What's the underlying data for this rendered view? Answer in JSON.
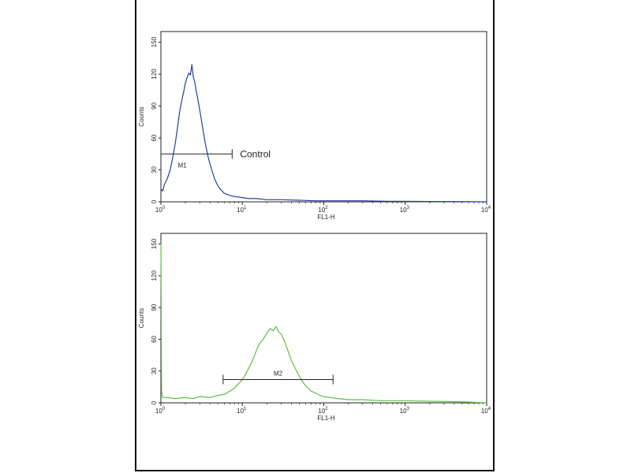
{
  "chart_data": [
    {
      "type": "line",
      "panel": "top",
      "xscale": "log",
      "xlim": [
        1,
        10000
      ],
      "ylim": [
        0,
        160
      ],
      "xlabel": "FL1-H",
      "ylabel": "Counts",
      "x_ticks": [
        1,
        10,
        100,
        1000,
        10000
      ],
      "x_tick_labels": [
        {
          "base": "10",
          "exp": "0"
        },
        {
          "base": "10",
          "exp": "1"
        },
        {
          "base": "10",
          "exp": "2"
        },
        {
          "base": "10",
          "exp": "3"
        },
        {
          "base": "10",
          "exp": "4"
        }
      ],
      "y_ticks": [
        0,
        30,
        60,
        90,
        120,
        150
      ],
      "y_tick_labels": [
        "0",
        "30",
        "60",
        "90",
        "120",
        "150"
      ],
      "color": "#2340a0",
      "series": [
        {
          "x": [
            1,
            1.05,
            1.1,
            1.2,
            1.3,
            1.4,
            1.5,
            1.6,
            1.7,
            1.8,
            1.9,
            2.0,
            2.1,
            2.2,
            2.3,
            2.4,
            2.5,
            2.6,
            2.7,
            2.8,
            3.0,
            3.2,
            3.5,
            3.8,
            4.2,
            4.6,
            5.0,
            5.5,
            6.0,
            7.0,
            8.0,
            10,
            12,
            15,
            20,
            30,
            50,
            80,
            150,
            300,
            600,
            1000,
            2000,
            5000,
            10000
          ],
          "y": [
            12,
            10,
            16,
            22,
            30,
            42,
            55,
            70,
            85,
            95,
            103,
            112,
            117,
            121,
            119,
            129,
            117,
            113,
            105,
            99,
            86,
            73,
            55,
            42,
            30,
            21,
            15,
            11,
            8,
            6,
            5,
            4,
            3,
            3,
            2,
            2,
            1.5,
            1,
            1,
            1,
            0.5,
            0.5,
            0.3,
            0.2,
            0
          ]
        }
      ],
      "marker": {
        "label": "M1",
        "x_start": 1,
        "x_end": 7.5,
        "y": 45
      },
      "annotation": "Control"
    },
    {
      "type": "line",
      "panel": "bottom",
      "xscale": "log",
      "xlim": [
        1,
        10000
      ],
      "ylim": [
        0,
        160
      ],
      "xlabel": "FL1-H",
      "ylabel": "Counts",
      "x_ticks": [
        1,
        10,
        100,
        1000,
        10000
      ],
      "x_tick_labels": [
        {
          "base": "10",
          "exp": "0"
        },
        {
          "base": "10",
          "exp": "1"
        },
        {
          "base": "10",
          "exp": "2"
        },
        {
          "base": "10",
          "exp": "3"
        },
        {
          "base": "10",
          "exp": "4"
        }
      ],
      "y_ticks": [
        0,
        30,
        60,
        90,
        120,
        150
      ],
      "y_tick_labels": [
        "0",
        "30",
        "60",
        "90",
        "120",
        "150"
      ],
      "color": "#5cc040",
      "series": [
        {
          "x": [
            1,
            1.02,
            1.05,
            1.2,
            1.5,
            2,
            2.5,
            3,
            4,
            5,
            6,
            7,
            8,
            9,
            10,
            11,
            12,
            13,
            14,
            15,
            16,
            18,
            20,
            22,
            24,
            26,
            28,
            30,
            33,
            36,
            40,
            45,
            50,
            55,
            60,
            70,
            80,
            90,
            100,
            120,
            150,
            200,
            300,
            500,
            1000,
            2000,
            5000,
            10000
          ],
          "y": [
            150,
            10,
            5,
            5,
            4,
            5,
            4,
            6,
            5,
            7,
            8,
            11,
            14,
            18,
            22,
            27,
            33,
            38,
            44,
            50,
            55,
            60,
            66,
            70,
            68,
            72,
            67,
            65,
            58,
            50,
            40,
            32,
            25,
            20,
            16,
            11,
            9,
            7,
            6,
            5,
            4,
            3,
            3,
            2,
            2,
            1.5,
            1,
            0
          ]
        }
      ],
      "marker": {
        "label": "M2",
        "x_start": 5.8,
        "x_end": 130,
        "y": 22
      }
    }
  ]
}
